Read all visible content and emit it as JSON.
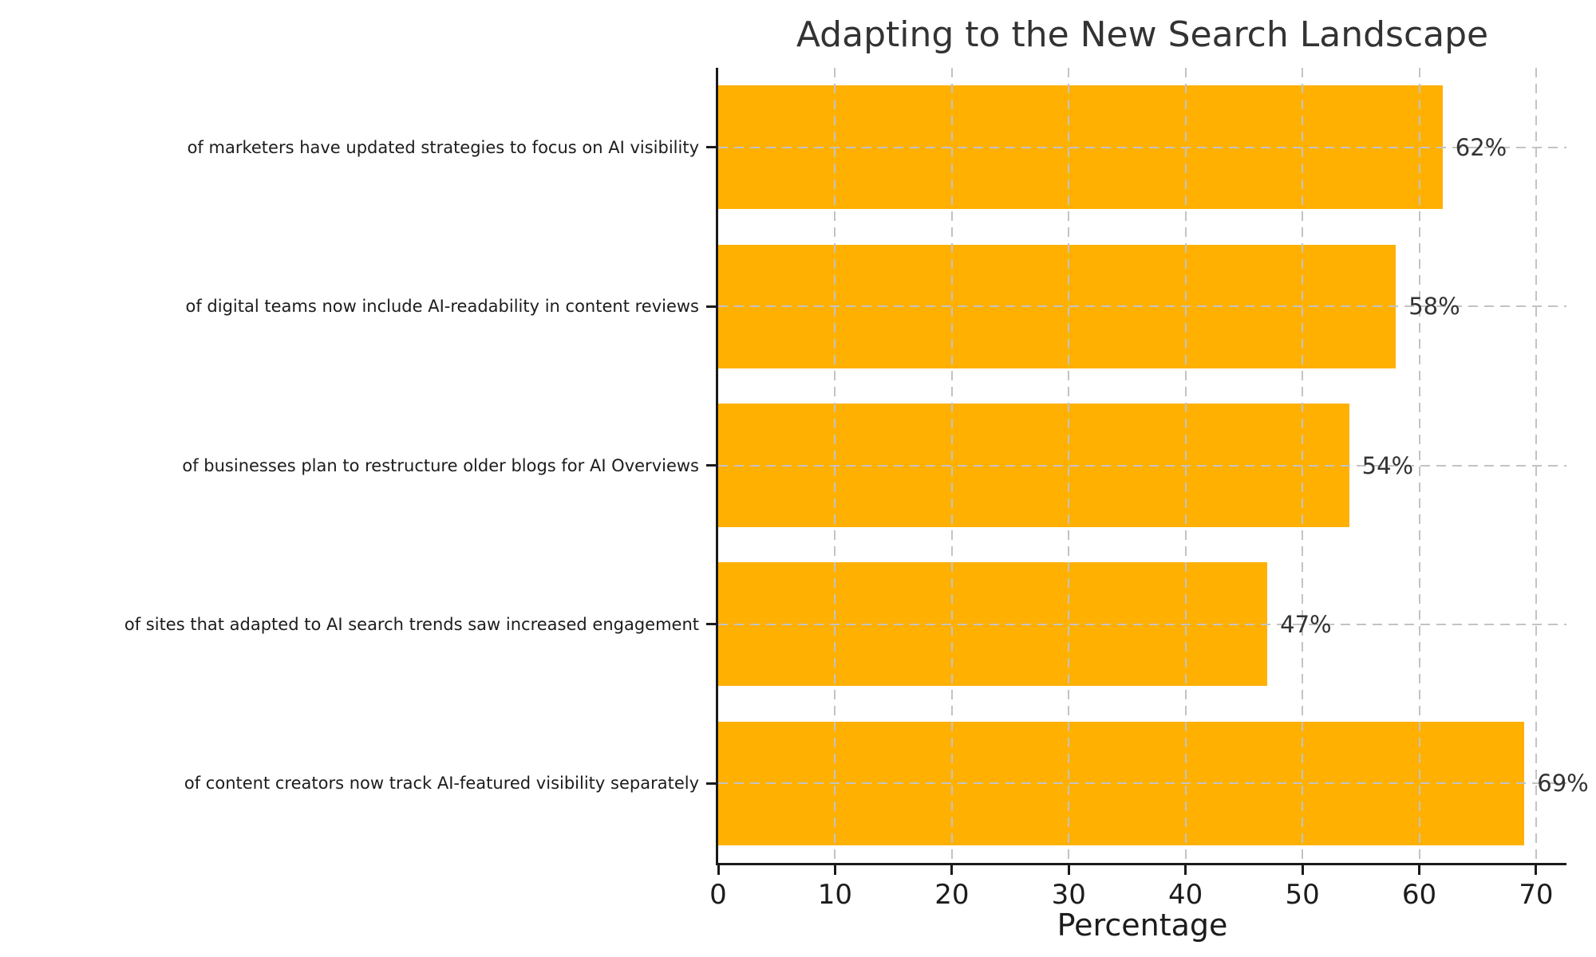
{
  "chart_data": {
    "type": "bar",
    "orientation": "horizontal",
    "title": "Adapting to the New Search Landscape",
    "xlabel": "Percentage",
    "ylabel": "",
    "categories": [
      "of marketers have updated strategies to focus on AI visibility",
      "of digital teams now include AI-readability in content reviews",
      "of businesses plan to restructure older blogs for AI Overviews",
      "of sites that adapted to AI search trends saw increased engagement",
      "of content creators now track AI-featured visibility separately"
    ],
    "values": [
      62,
      58,
      54,
      47,
      69
    ],
    "value_labels": [
      "62%",
      "58%",
      "54%",
      "47%",
      "69%"
    ],
    "x_ticks": [
      "0",
      "10",
      "20",
      "30",
      "40",
      "50",
      "60",
      "70"
    ],
    "x_tick_values": [
      0,
      10,
      20,
      30,
      40,
      50,
      60,
      70
    ],
    "xlim": [
      0,
      72.6
    ],
    "legend": "none",
    "grid": "dashed gridlines on both axes, drawn over bars",
    "bar_color": "#FFB000",
    "gridline_color": "#c3c3c3",
    "axis_color": "#1a1a1a",
    "title_color": "#333333",
    "background_color": "#ffffff"
  }
}
